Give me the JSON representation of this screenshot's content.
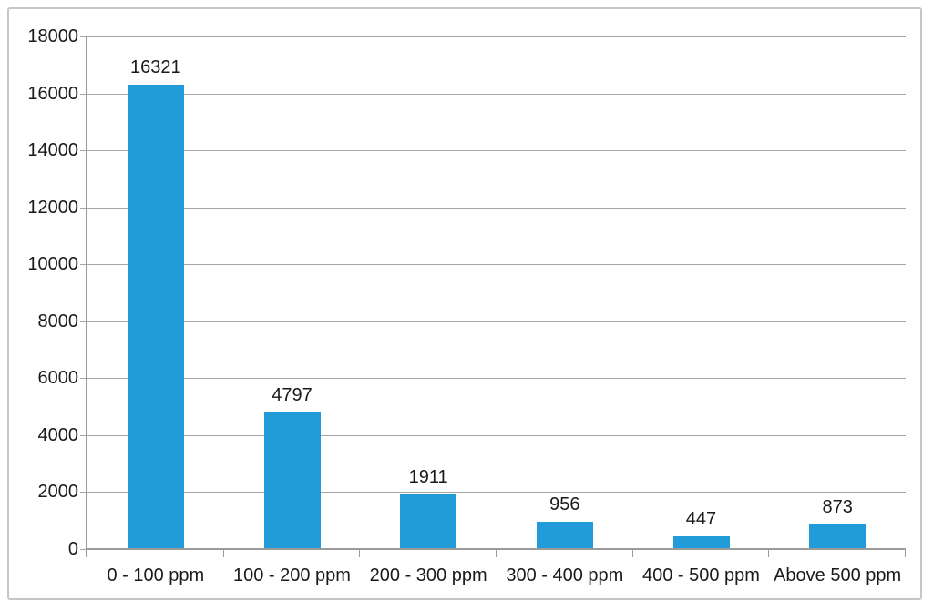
{
  "chart": {
    "background_color": "#FFFFFF",
    "frame_border_color": "#C6C6C6"
  },
  "chart_data": {
    "type": "bar",
    "title": "",
    "xlabel": "",
    "ylabel": "",
    "categories": [
      "0 - 100 ppm",
      "100 - 200 ppm",
      "200 - 300 ppm",
      "300 - 400 ppm",
      "400 - 500 ppm",
      "Above 500 ppm"
    ],
    "values": [
      16321,
      4797,
      1911,
      956,
      447,
      873
    ],
    "data_labels": [
      "16321",
      "4797",
      "1911",
      "956",
      "447",
      "873"
    ],
    "ylim": [
      0,
      18000
    ],
    "yticks": [
      0,
      2000,
      4000,
      6000,
      8000,
      10000,
      12000,
      14000,
      16000,
      18000
    ],
    "ytick_labels": [
      "0",
      "2000",
      "4000",
      "6000",
      "8000",
      "10000",
      "12000",
      "14000",
      "16000",
      "18000"
    ],
    "grid": true,
    "legend": "none",
    "bar_color": "#219CD8",
    "gridline_color": "#A6A6A6",
    "axis_color": "#9B9B9B",
    "label_color": "#1A1A1A"
  }
}
